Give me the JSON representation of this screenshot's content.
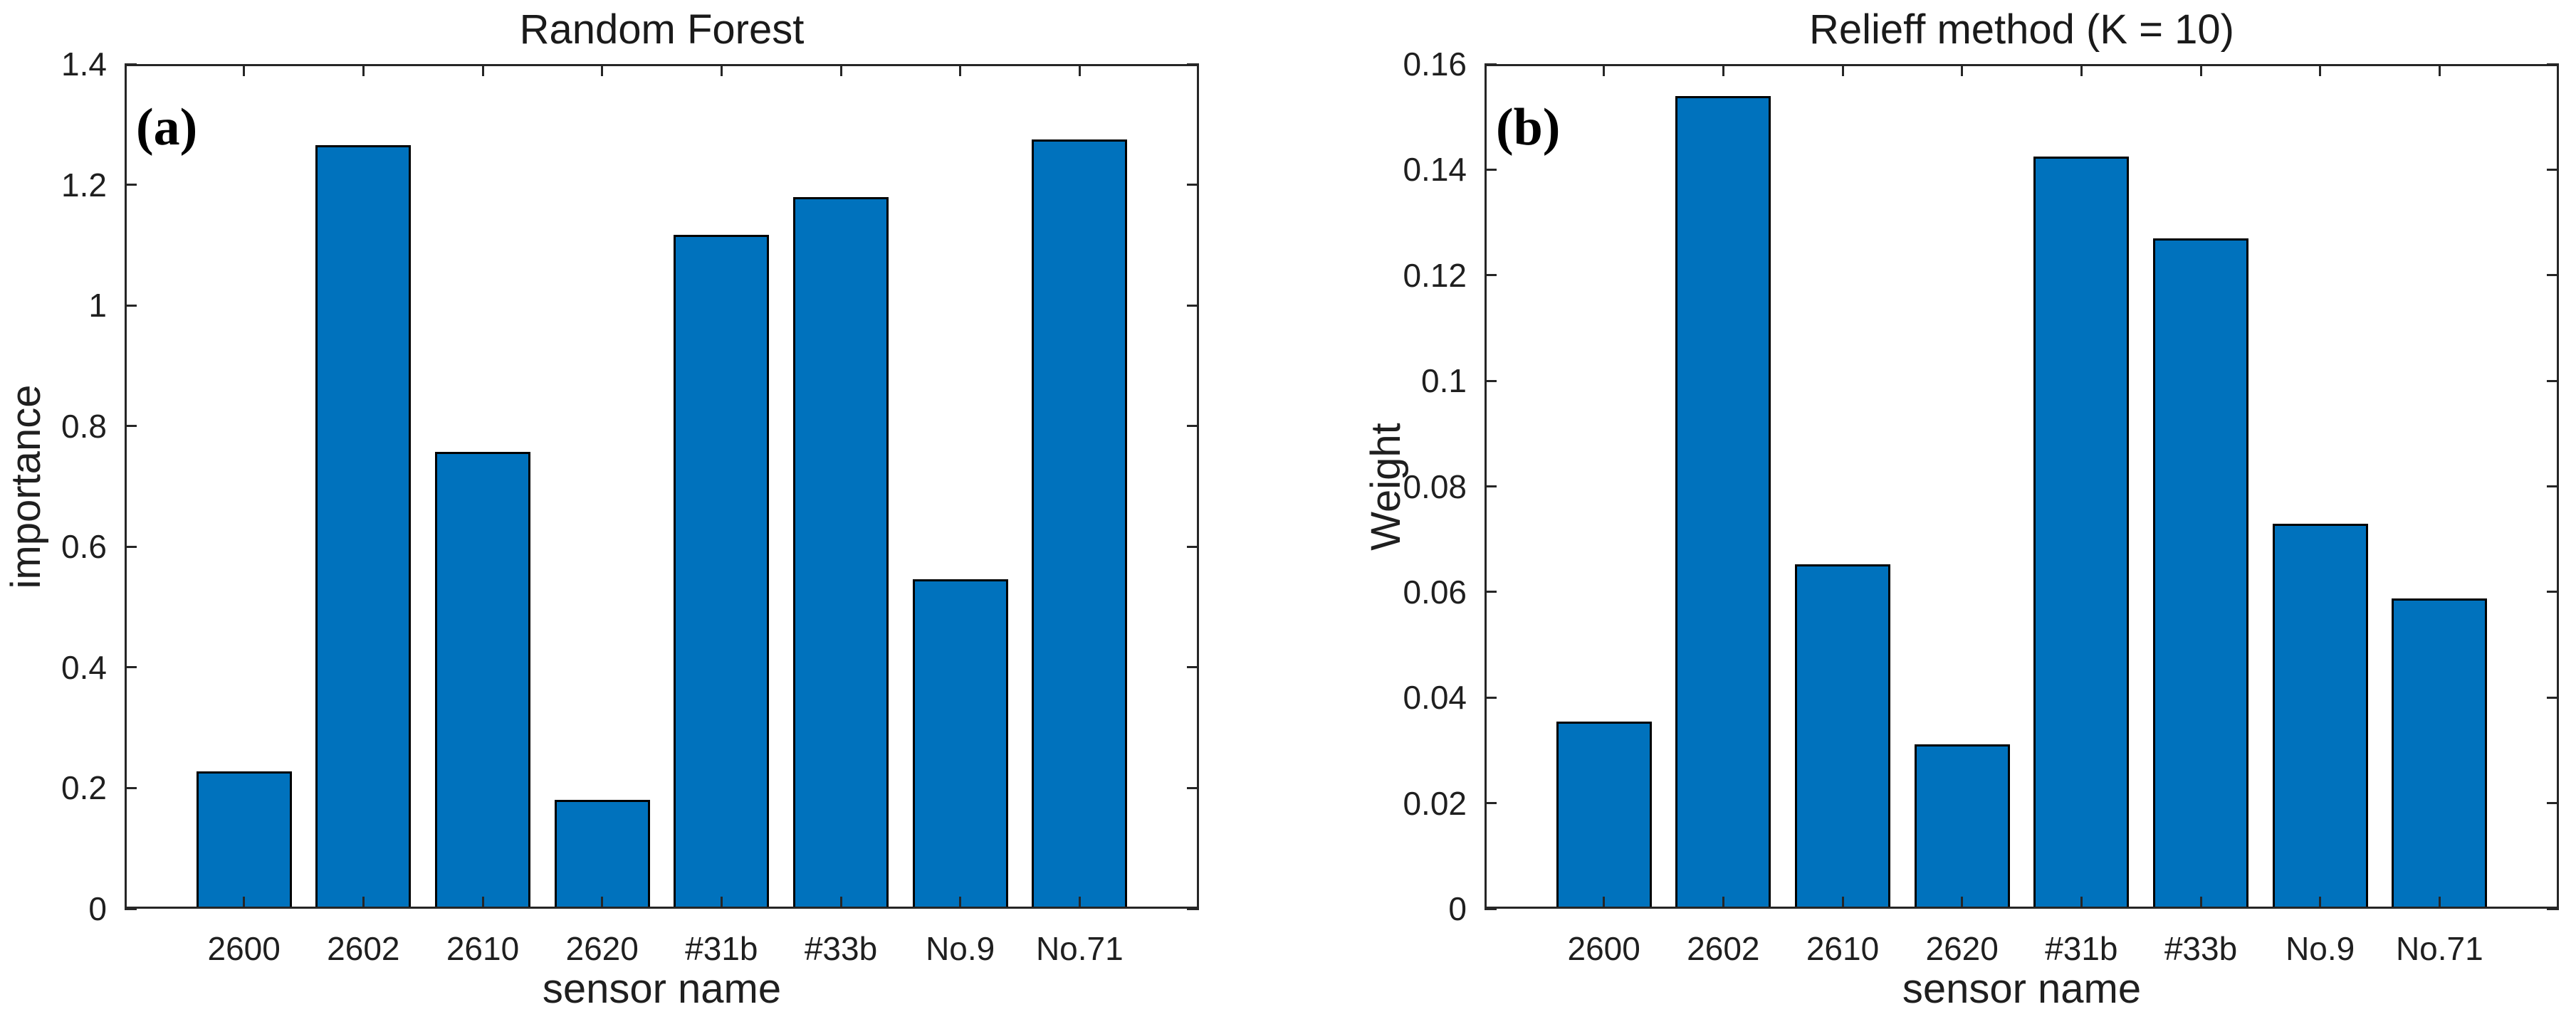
{
  "figure": {
    "background": "#ffffff",
    "axis_color": "#262626",
    "text_color": "#1f1f1f",
    "bar_fill": "#0072BD",
    "bar_edge": "#000000"
  },
  "chart_data": [
    {
      "type": "bar",
      "panel_label": "(a)",
      "title": "Random Forest",
      "xlabel": "sensor name",
      "ylabel": "importance",
      "categories": [
        "2600",
        "2602",
        "2610",
        "2620",
        "#31b",
        "#33b",
        "No.9",
        "No.71"
      ],
      "values": [
        0.228,
        1.265,
        0.757,
        0.18,
        1.117,
        1.18,
        0.546,
        1.275
      ],
      "ylim": [
        0,
        1.4
      ],
      "yticks": [
        0,
        0.2,
        0.4,
        0.6,
        0.8,
        1,
        1.2,
        1.4
      ],
      "ytick_labels": [
        "0",
        "0.2",
        "0.4",
        "0.6",
        "0.8",
        "1",
        "1.2",
        "1.4"
      ],
      "grid": false,
      "legend": null,
      "bar_width_fraction": 0.8
    },
    {
      "type": "bar",
      "panel_label": "(b)",
      "title": "Relieff method (K = 10)",
      "xlabel": "sensor name",
      "ylabel": "Weight",
      "categories": [
        "2600",
        "2602",
        "2610",
        "2620",
        "#31b",
        "#33b",
        "No.9",
        "No.71"
      ],
      "values": [
        0.0355,
        0.154,
        0.0652,
        0.0311,
        0.1425,
        0.127,
        0.0729,
        0.0588
      ],
      "ylim": [
        0,
        0.16
      ],
      "yticks": [
        0,
        0.02,
        0.04,
        0.06,
        0.08,
        0.1,
        0.12,
        0.14,
        0.16
      ],
      "ytick_labels": [
        "0",
        "0.02",
        "0.04",
        "0.06",
        "0.08",
        "0.1",
        "0.12",
        "0.14",
        "0.16"
      ],
      "grid": false,
      "legend": null,
      "bar_width_fraction": 0.8
    }
  ]
}
